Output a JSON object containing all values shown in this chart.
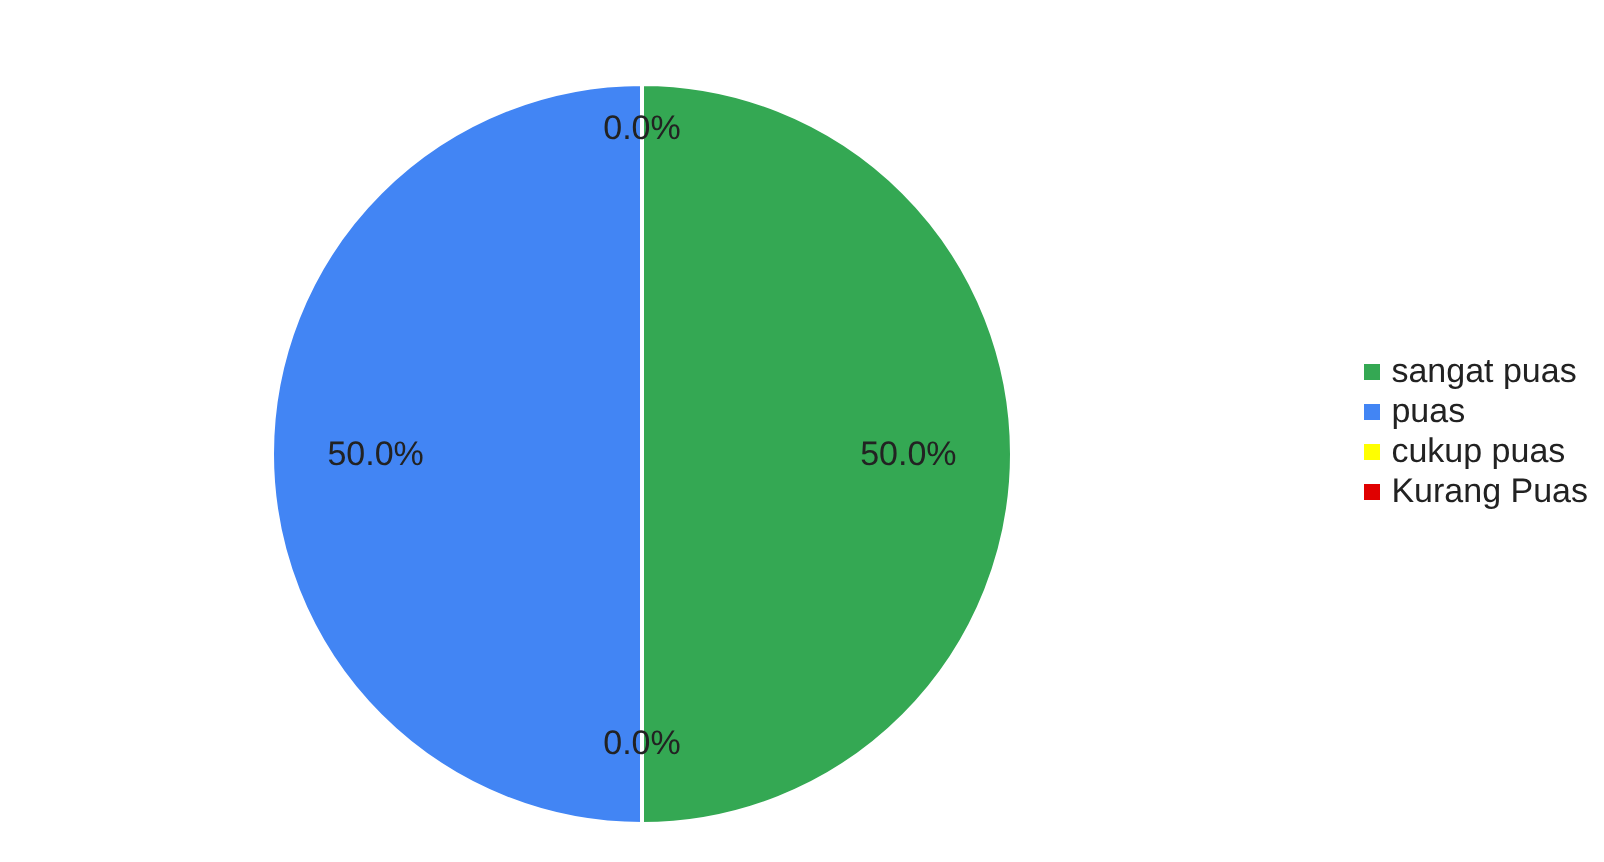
{
  "chart_data": {
    "type": "pie",
    "categories": [
      "sangat puas",
      "puas",
      "cukup puas",
      "Kurang Puas"
    ],
    "values": [
      50,
      50,
      0,
      0
    ],
    "colors": [
      "#34a853",
      "#4285f4",
      "#ffff00",
      "#e00000"
    ],
    "value_labels": [
      "50.0%",
      "50.0%",
      "0.0%",
      "0.0%"
    ],
    "legend": "right"
  }
}
